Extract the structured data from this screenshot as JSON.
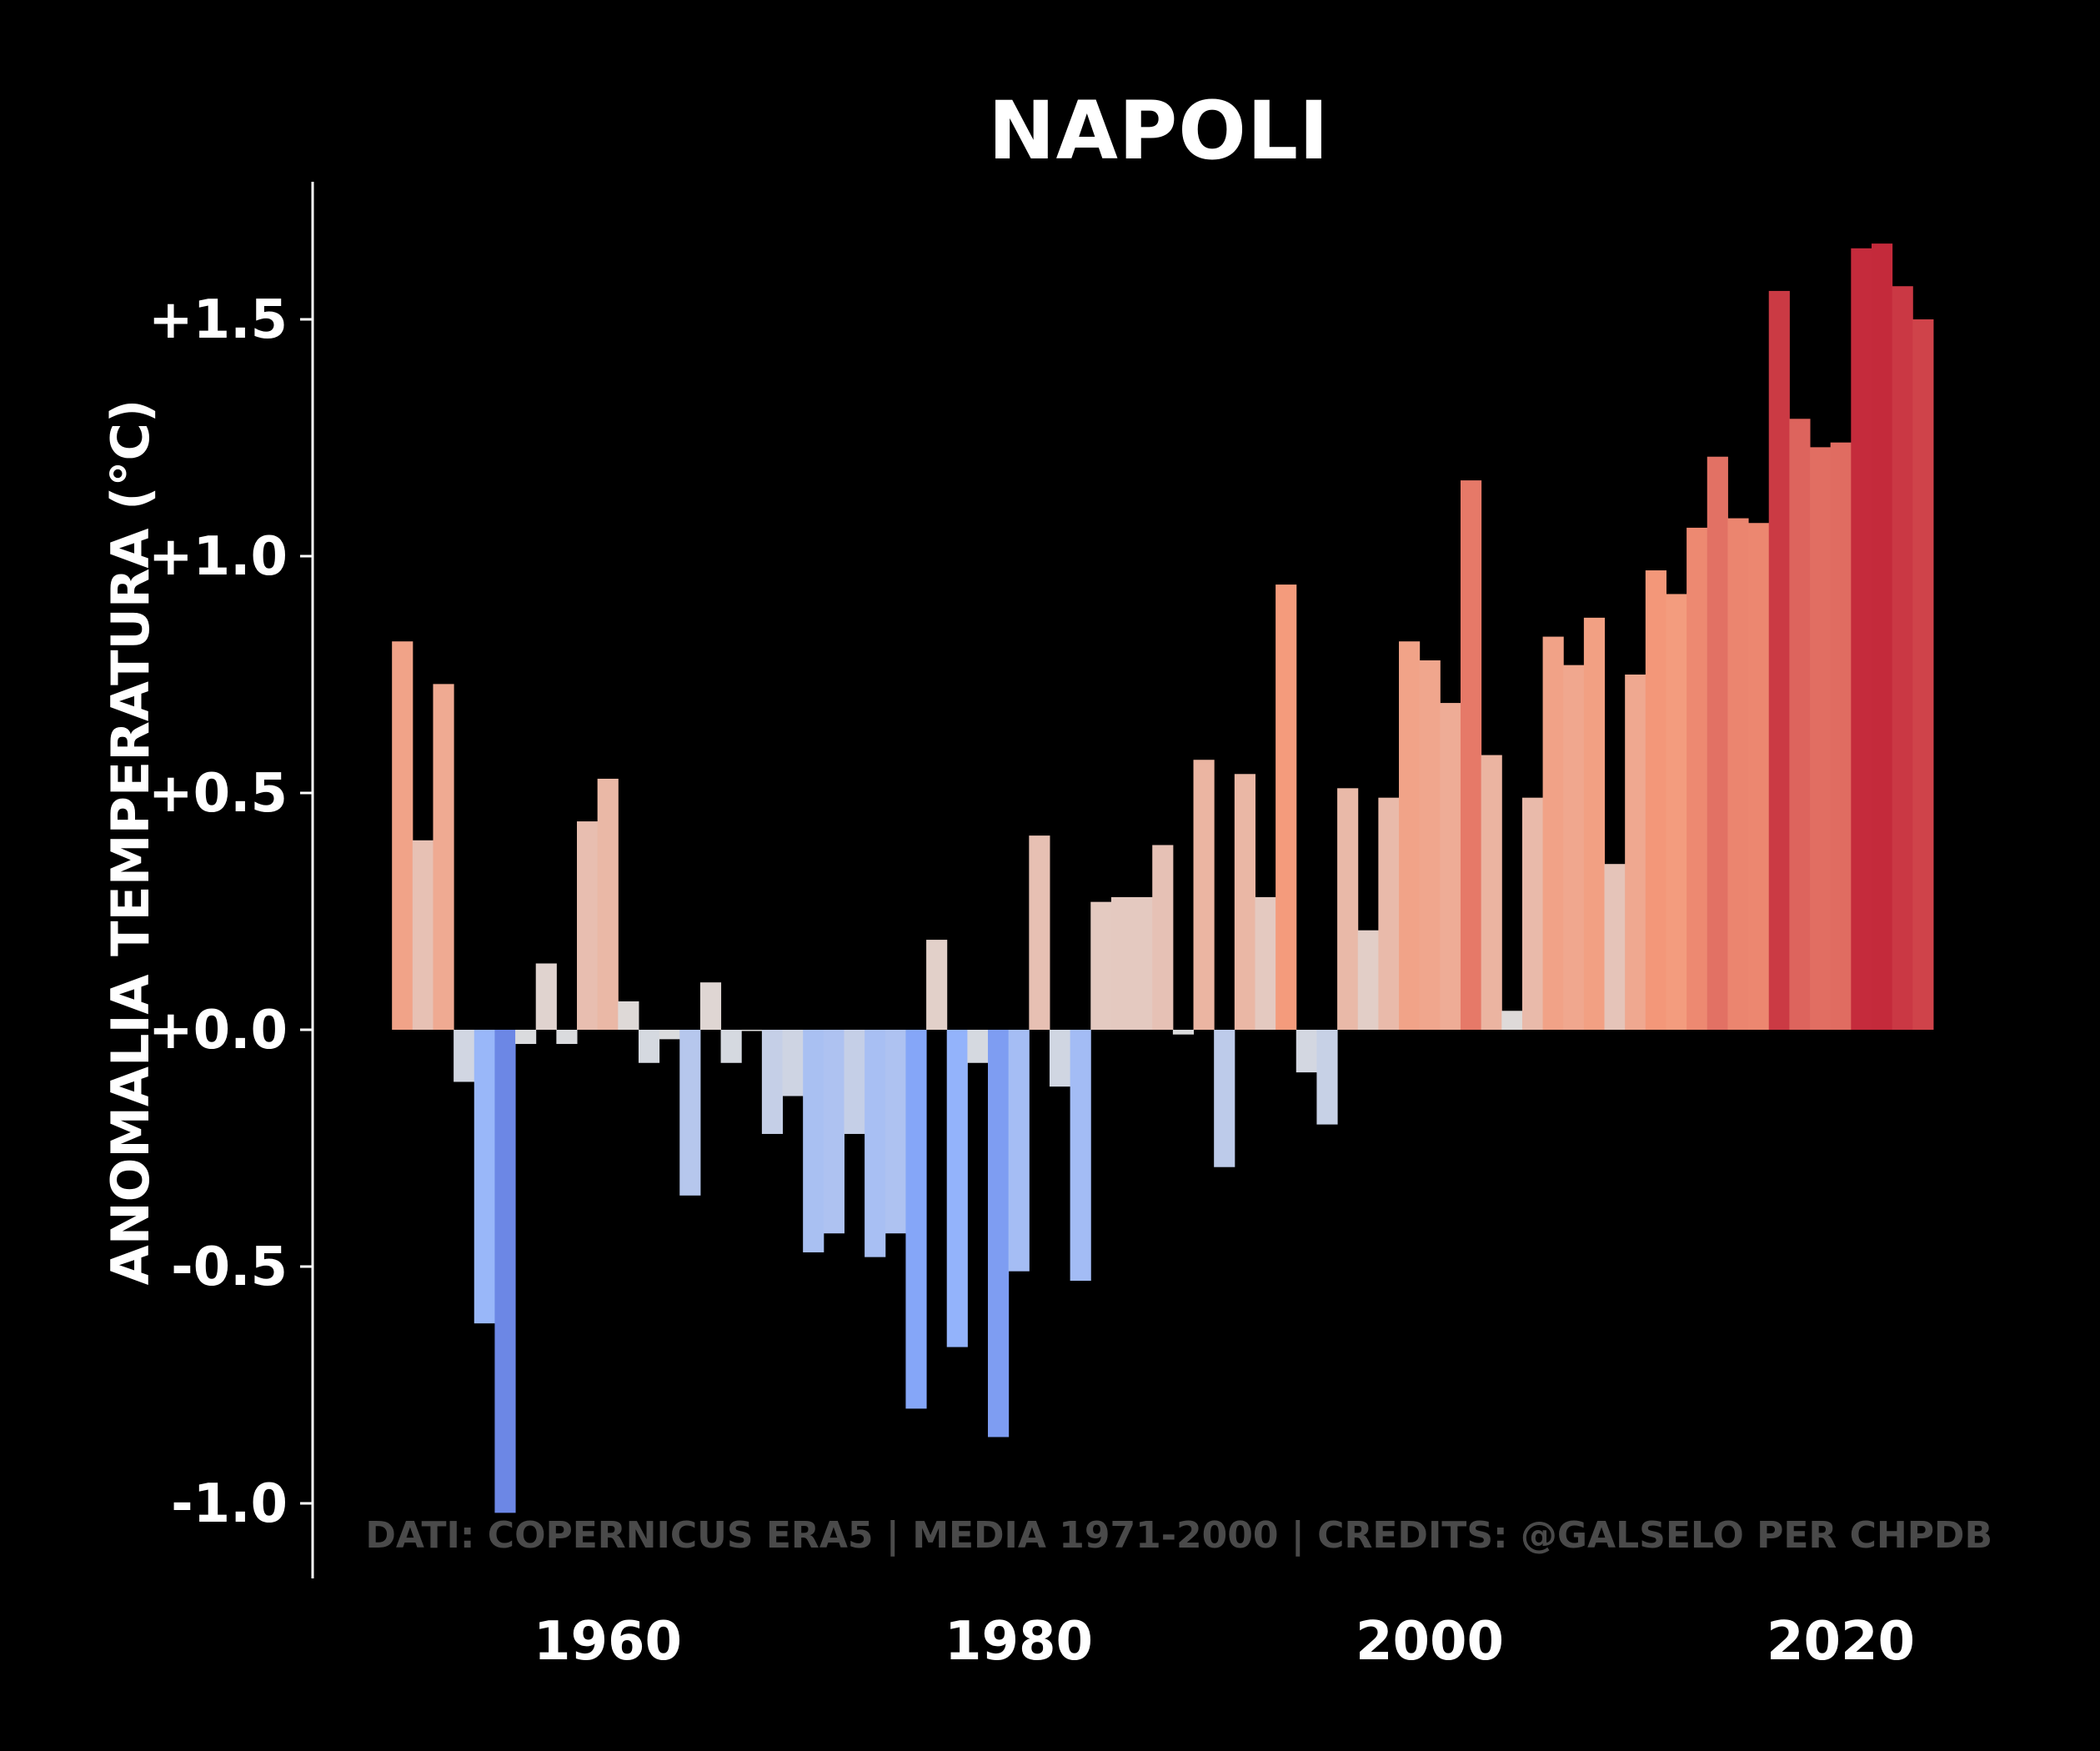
{
  "chart_data": {
    "type": "bar",
    "title": "NAPOLI",
    "ylabel": "ANOMALIA TEMPERATURA (°C)",
    "xlabel": "",
    "credits": "DATI: COPERNICUS ERA5 | MEDIA 1971-2000 | CREDITS: @GALSELO PER CHPDB",
    "xlim": [
      1946.5,
      2028
    ],
    "ylim": [
      -1.15,
      1.78
    ],
    "grid": false,
    "x_ticks": [
      1960,
      1980,
      2000,
      2020
    ],
    "x_tick_labels": [
      "1960",
      "1980",
      "2000",
      "2020"
    ],
    "y_ticks": [
      1.5,
      1.0,
      0.5,
      0.0,
      -0.5,
      -1.0
    ],
    "y_tick_labels": [
      "+1.5",
      "+1.0",
      "+0.5",
      "+0.0",
      "-0.5",
      "-1.0"
    ],
    "color_scale": {
      "name": "coolwarm",
      "vmin": -1.0,
      "vmax": 1.7
    },
    "years": [
      1950,
      1951,
      1952,
      1953,
      1954,
      1955,
      1956,
      1957,
      1958,
      1959,
      1960,
      1961,
      1962,
      1963,
      1964,
      1965,
      1966,
      1967,
      1968,
      1969,
      1970,
      1971,
      1972,
      1973,
      1974,
      1975,
      1976,
      1977,
      1978,
      1979,
      1980,
      1981,
      1982,
      1983,
      1984,
      1985,
      1986,
      1987,
      1988,
      1989,
      1990,
      1991,
      1992,
      1993,
      1994,
      1995,
      1996,
      1997,
      1998,
      1999,
      2000,
      2001,
      2002,
      2003,
      2004,
      2005,
      2006,
      2007,
      2008,
      2009,
      2010,
      2011,
      2012,
      2013,
      2014,
      2015,
      2016,
      2017,
      2018,
      2019,
      2020,
      2021,
      2022,
      2023,
      2024
    ],
    "values": [
      0.82,
      0.4,
      0.73,
      -0.11,
      -0.62,
      -1.02,
      -0.03,
      0.14,
      -0.03,
      0.44,
      0.53,
      0.06,
      -0.07,
      -0.02,
      -0.35,
      0.1,
      -0.07,
      0.0,
      -0.22,
      -0.14,
      -0.47,
      -0.43,
      -0.22,
      -0.48,
      -0.43,
      -0.8,
      0.19,
      -0.67,
      -0.07,
      -0.86,
      -0.51,
      0.41,
      -0.12,
      -0.53,
      0.27,
      0.28,
      0.28,
      0.39,
      -0.01,
      0.57,
      -0.29,
      0.54,
      0.28,
      0.94,
      -0.09,
      -0.2,
      0.51,
      0.21,
      0.49,
      0.82,
      0.78,
      0.69,
      1.16,
      0.58,
      0.04,
      0.49,
      0.83,
      0.77,
      0.87,
      0.35,
      0.75,
      0.97,
      0.92,
      1.06,
      1.21,
      1.08,
      1.07,
      1.56,
      1.29,
      1.23,
      1.24,
      1.65,
      1.66,
      1.57,
      1.5
    ]
  }
}
